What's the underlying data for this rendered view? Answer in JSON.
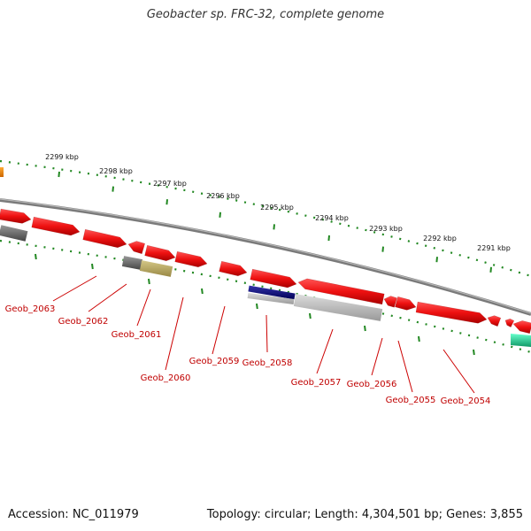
{
  "title": "Geobacter sp. FRC-32, complete genome",
  "footer": {
    "accession": "Accession: NC_011979",
    "summary": "Topology: circular; Length: 4,304,501 bp; Genes: 3,855"
  },
  "ticks": [
    "2299 kbp",
    "2298 kbp",
    "2297 kbp",
    "2296 kbp",
    "2295 kbp",
    "2294 kbp",
    "2293 kbp",
    "2292 kbp",
    "2291 kbp"
  ],
  "genes": [
    "Geob_2063",
    "Geob_2062",
    "Geob_2061",
    "Geob_2060",
    "Geob_2059",
    "Geob_2058",
    "Geob_2057",
    "Geob_2056",
    "Geob_2055",
    "Geob_2054"
  ],
  "colors": {
    "cds": "#ee1111",
    "backbone": "#888888",
    "tick": "#228822",
    "label": "#c00000",
    "rna_dark_gray": "#666666",
    "olive": "#bbaa66",
    "navy": "#111177",
    "light_gray": "#bbbbbb",
    "teal": "#22cc99",
    "orange": "#ee8800"
  }
}
